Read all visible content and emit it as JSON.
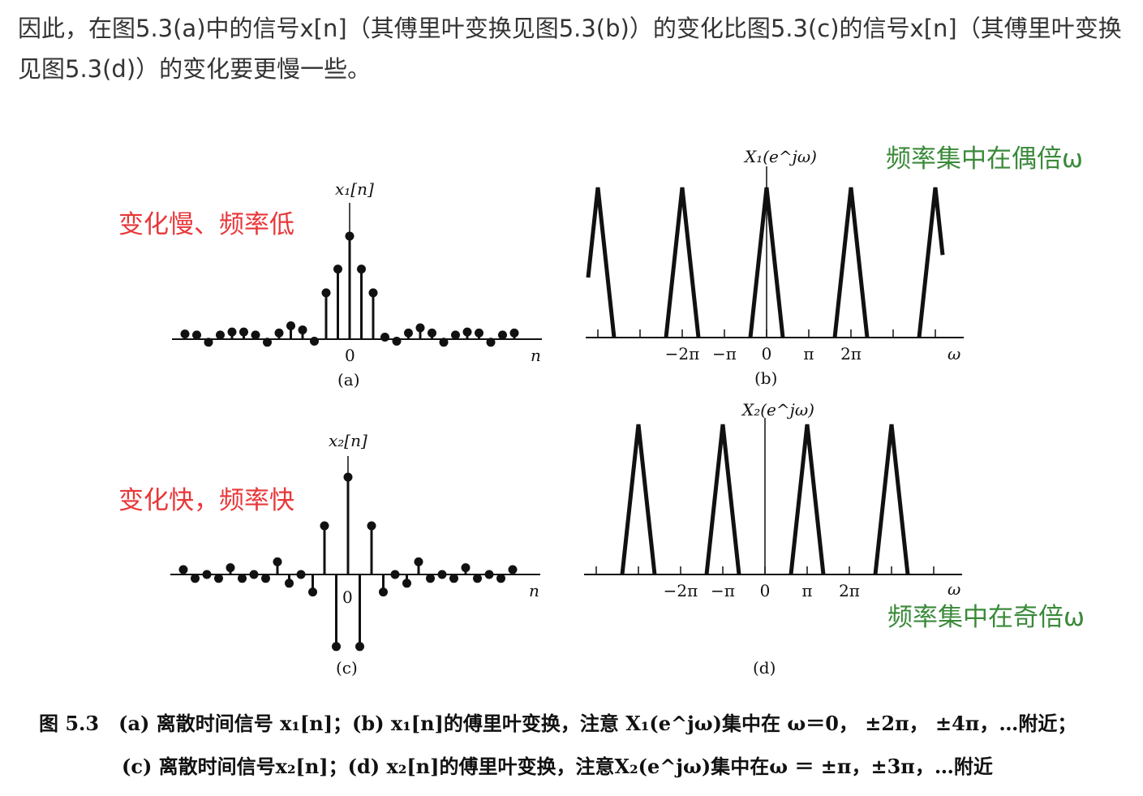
{
  "intro_text": "因此，在图5.3(a)中的信号x[n]（其傅里叶变换见图5.3(b)）的变化比图5.3(c)的信号x[n]（其傅里叶变换见图5.3(d)）的变化要更慢一些。",
  "panels": {
    "a": {
      "signal_label": "x₁[n]",
      "origin_label": "0",
      "axis_label": "n",
      "sub_label": "(a)",
      "stems": [
        {
          "n": -14,
          "v": 0.05
        },
        {
          "n": -13,
          "v": 0.04
        },
        {
          "n": -12,
          "v": -0.03
        },
        {
          "n": -11,
          "v": 0.04
        },
        {
          "n": -10,
          "v": 0.07
        },
        {
          "n": -9,
          "v": 0.07
        },
        {
          "n": -8,
          "v": 0.04
        },
        {
          "n": -7,
          "v": -0.03
        },
        {
          "n": -6,
          "v": 0.06
        },
        {
          "n": -5,
          "v": 0.13
        },
        {
          "n": -4,
          "v": 0.09
        },
        {
          "n": -3,
          "v": -0.02
        },
        {
          "n": -2,
          "v": 0.45
        },
        {
          "n": -1,
          "v": 0.68
        },
        {
          "n": 0,
          "v": 1.0
        },
        {
          "n": 1,
          "v": 0.68
        },
        {
          "n": 2,
          "v": 0.45
        },
        {
          "n": 3,
          "v": 0.02
        },
        {
          "n": 4,
          "v": -0.02
        },
        {
          "n": 5,
          "v": 0.06
        },
        {
          "n": 6,
          "v": 0.11
        },
        {
          "n": 7,
          "v": 0.06
        },
        {
          "n": 8,
          "v": -0.03
        },
        {
          "n": 9,
          "v": 0.04
        },
        {
          "n": 10,
          "v": 0.07
        },
        {
          "n": 11,
          "v": 0.06
        },
        {
          "n": 12,
          "v": -0.03
        },
        {
          "n": 13,
          "v": 0.04
        },
        {
          "n": 14,
          "v": 0.06
        }
      ]
    },
    "b": {
      "signal_label": "X₁(e^jω)",
      "axis_label": "ω",
      "sub_label": "(b)",
      "ticks": [
        "−2π",
        "−π",
        "0",
        "π",
        "2π"
      ],
      "peaks_at_pi_multiples": [
        -4,
        -2,
        0,
        2,
        4
      ]
    },
    "c": {
      "signal_label": "x₂[n]",
      "origin_label": "0",
      "axis_label": "n",
      "sub_label": "(c)",
      "stems": [
        {
          "n": -14,
          "v": 0.05
        },
        {
          "n": -13,
          "v": -0.04
        },
        {
          "n": -12,
          "v": 0.0
        },
        {
          "n": -11,
          "v": -0.04
        },
        {
          "n": -10,
          "v": 0.07
        },
        {
          "n": -9,
          "v": -0.04
        },
        {
          "n": -8,
          "v": 0.0
        },
        {
          "n": -7,
          "v": -0.04
        },
        {
          "n": -6,
          "v": 0.13
        },
        {
          "n": -5,
          "v": -0.09
        },
        {
          "n": -4,
          "v": 0.0
        },
        {
          "n": -3,
          "v": -0.18
        },
        {
          "n": -2,
          "v": 0.5
        },
        {
          "n": -1,
          "v": -0.74
        },
        {
          "n": 0,
          "v": 1.0
        },
        {
          "n": 1,
          "v": -0.74
        },
        {
          "n": 2,
          "v": 0.5
        },
        {
          "n": 3,
          "v": -0.18
        },
        {
          "n": 4,
          "v": 0.0
        },
        {
          "n": 5,
          "v": -0.09
        },
        {
          "n": 6,
          "v": 0.13
        },
        {
          "n": 7,
          "v": -0.04
        },
        {
          "n": 8,
          "v": 0.0
        },
        {
          "n": 9,
          "v": -0.04
        },
        {
          "n": 10,
          "v": 0.07
        },
        {
          "n": 11,
          "v": -0.04
        },
        {
          "n": 12,
          "v": 0.0
        },
        {
          "n": 13,
          "v": -0.04
        },
        {
          "n": 14,
          "v": 0.05
        }
      ]
    },
    "d": {
      "signal_label": "X₂(e^jω)",
      "axis_label": "ω",
      "sub_label": "(d)",
      "ticks": [
        "−2π",
        "−π",
        "0",
        "π",
        "2π"
      ],
      "peaks_at_pi_multiples": [
        -3,
        -1,
        1,
        3
      ]
    }
  },
  "annotations": {
    "slow": "变化慢、频率低",
    "fast": "变化快，频率快",
    "even": "频率集中在偶倍ω",
    "odd": "频率集中在奇倍ω"
  },
  "caption": {
    "line1": "图 5.3　(a) 离散时间信号 x₁[n]；(b) x₁[n]的傅里叶变换，注意 X₁(e^jω)集中在 ω＝0， ±2π， ±4π，…附近；",
    "line2": "(c) 离散时间信号x₂[n]；(d) x₂[n]的傅里叶变换，注意X₂(e^jω)集中在ω ＝ ±π，±3π，…附近"
  }
}
